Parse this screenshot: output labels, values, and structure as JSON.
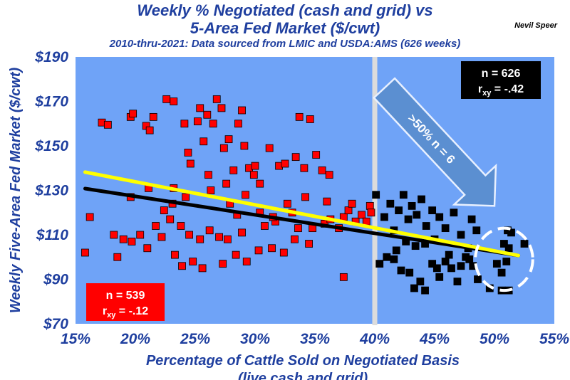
{
  "header": {
    "title_line1": "Weekly % Negotiated (cash and grid) vs",
    "title_line2": "5-Area Fed Market ($/cwt)",
    "subtitle": "2010-thru-2021: Data sourced from LMIC and USDA:AMS (626 weeks)",
    "author": "Nevil Speer"
  },
  "colors": {
    "plot_bg": "#6fa3f7",
    "red_points": "#ff0000",
    "black_points": "#000000",
    "yellow_line": "#ffff00",
    "black_line": "#000000",
    "axis_text": "#1f3f9f",
    "arrow": "#5b8fd1"
  },
  "chart_data": {
    "type": "scatter",
    "title": "Weekly % Negotiated (cash and grid) vs 5-Area Fed Market ($/cwt)",
    "xlabel_line1": "Percentage of Cattle Sold on Negotiated Basis",
    "xlabel_line2": "(live cash and grid)",
    "ylabel": "Weekly Five-Area Fed Market ($/cwt)",
    "xlim": [
      15,
      55
    ],
    "ylim": [
      70,
      190
    ],
    "x_ticks": [
      15,
      20,
      25,
      30,
      35,
      40,
      45,
      50,
      55
    ],
    "x_tick_labels": [
      "15%",
      "20%",
      "25%",
      "30%",
      "35%",
      "40%",
      "45%",
      "50%",
      "55%"
    ],
    "y_ticks": [
      70,
      90,
      110,
      130,
      150,
      170,
      190
    ],
    "y_tick_labels": [
      "$70",
      "$90",
      "$110",
      "$130",
      "$150",
      "$170",
      "$190"
    ],
    "grid": false,
    "divider_x": 40,
    "series": [
      {
        "color": "#ff0000",
        "count_label": "n = 539",
        "r_label": "r",
        "r_sub": "xy",
        "r_value": " = -.12",
        "points": [
          [
            15.8,
            102
          ],
          [
            16.2,
            118
          ],
          [
            17.2,
            160.5
          ],
          [
            17.7,
            159.5
          ],
          [
            18.2,
            110
          ],
          [
            18.5,
            100
          ],
          [
            19,
            108
          ],
          [
            19.6,
            163
          ],
          [
            19.6,
            127
          ],
          [
            19.7,
            107
          ],
          [
            19.8,
            164.5
          ],
          [
            20.4,
            110
          ],
          [
            20.9,
            159
          ],
          [
            21,
            104
          ],
          [
            21.2,
            157
          ],
          [
            21.5,
            163
          ],
          [
            21.7,
            114
          ],
          [
            22.2,
            109
          ],
          [
            22.6,
            171
          ],
          [
            23.2,
            170
          ],
          [
            22.9,
            117
          ],
          [
            23.8,
            114
          ],
          [
            24.1,
            160
          ],
          [
            24.4,
            147
          ],
          [
            24.6,
            142
          ],
          [
            25.2,
            161
          ],
          [
            25.4,
            167
          ],
          [
            25.7,
            152
          ],
          [
            26,
            164
          ],
          [
            26.5,
            160
          ],
          [
            26.8,
            171
          ],
          [
            27.2,
            167
          ],
          [
            27.4,
            149
          ],
          [
            27.8,
            153
          ],
          [
            28.2,
            139
          ],
          [
            28.6,
            160
          ],
          [
            28.9,
            166
          ],
          [
            29.1,
            150
          ],
          [
            29.5,
            140
          ],
          [
            29.9,
            137
          ],
          [
            30.4,
            133
          ],
          [
            31.2,
            149
          ],
          [
            32,
            141
          ],
          [
            32.5,
            142
          ],
          [
            33.4,
            145
          ],
          [
            33.7,
            163
          ],
          [
            34.1,
            140
          ],
          [
            34.6,
            162
          ],
          [
            35.1,
            146
          ],
          [
            35.6,
            139
          ],
          [
            36.2,
            137
          ],
          [
            37.4,
            91
          ],
          [
            23.3,
            101
          ],
          [
            23.9,
            96
          ],
          [
            24.8,
            98
          ],
          [
            25.6,
            95
          ],
          [
            27.3,
            97
          ],
          [
            28.4,
            101
          ],
          [
            29.3,
            98
          ],
          [
            30.3,
            103
          ],
          [
            31.4,
            104
          ],
          [
            32.4,
            102
          ],
          [
            33.3,
            108
          ],
          [
            34.5,
            106
          ],
          [
            35.8,
            115
          ],
          [
            36.3,
            117
          ],
          [
            37,
            113
          ],
          [
            37.4,
            118
          ],
          [
            37.8,
            121
          ],
          [
            38.4,
            116
          ],
          [
            38.9,
            119
          ],
          [
            39.3,
            116
          ],
          [
            39.6,
            123
          ],
          [
            39.7,
            120
          ],
          [
            24.5,
            110
          ],
          [
            25.4,
            108
          ],
          [
            26.2,
            112
          ],
          [
            27,
            109
          ],
          [
            27.7,
            108
          ],
          [
            28.9,
            111
          ],
          [
            30.8,
            114
          ],
          [
            31.7,
            116
          ],
          [
            33.6,
            113
          ],
          [
            34.8,
            113
          ],
          [
            21.1,
            131
          ],
          [
            22.4,
            121
          ],
          [
            23.1,
            124
          ],
          [
            24.2,
            127
          ],
          [
            26.3,
            130
          ],
          [
            27.6,
            133
          ],
          [
            29.2,
            128
          ],
          [
            30.4,
            120
          ],
          [
            32.7,
            124
          ],
          [
            34.2,
            127
          ],
          [
            36,
            125
          ],
          [
            38.1,
            124
          ],
          [
            23.2,
            131
          ],
          [
            26.1,
            137
          ],
          [
            30,
            141
          ],
          [
            31.5,
            118
          ],
          [
            33.1,
            120
          ],
          [
            28.5,
            119
          ],
          [
            27.9,
            124
          ]
        ]
      },
      {
        "color": "#000000",
        "count_label": "n = 626",
        "r_label": "r",
        "r_sub": "xy",
        "r_value": " = -.42",
        "points": [
          [
            40.1,
            128
          ],
          [
            40.8,
            118
          ],
          [
            41.3,
            124
          ],
          [
            41.6,
            112
          ],
          [
            42,
            121
          ],
          [
            42.4,
            128
          ],
          [
            42.8,
            117
          ],
          [
            43.1,
            123
          ],
          [
            43.5,
            119
          ],
          [
            43.9,
            126
          ],
          [
            44.3,
            114
          ],
          [
            44.8,
            121
          ],
          [
            45.4,
            118
          ],
          [
            45.9,
            113
          ],
          [
            46.6,
            120
          ],
          [
            47.2,
            110
          ],
          [
            48.1,
            117
          ],
          [
            48.5,
            112
          ],
          [
            40.4,
            97
          ],
          [
            41,
            100
          ],
          [
            41.6,
            99
          ],
          [
            42.2,
            94
          ],
          [
            42.9,
            93
          ],
          [
            43.3,
            86
          ],
          [
            43.8,
            89
          ],
          [
            44.2,
            85
          ],
          [
            44.8,
            97
          ],
          [
            45.2,
            95
          ],
          [
            45.4,
            91
          ],
          [
            45.9,
            98
          ],
          [
            46.4,
            95
          ],
          [
            46.9,
            89
          ],
          [
            47.2,
            96
          ],
          [
            47.6,
            100
          ],
          [
            47.9,
            99
          ],
          [
            48.2,
            96
          ],
          [
            48.6,
            90
          ],
          [
            49.6,
            86
          ],
          [
            41.8,
            103
          ],
          [
            42.6,
            107
          ],
          [
            43.4,
            105
          ],
          [
            44.2,
            106
          ],
          [
            45,
            108
          ],
          [
            46.2,
            101
          ],
          [
            47.8,
            104
          ],
          [
            50.6,
            93
          ],
          [
            51,
            98
          ],
          [
            50.2,
            97
          ],
          [
            51.1,
            112
          ],
          [
            51.4,
            111
          ],
          [
            50.8,
            106
          ],
          [
            52.5,
            106
          ],
          [
            51.2,
            104
          ],
          [
            50.6,
            85
          ],
          [
            51.2,
            85
          ]
        ]
      }
    ],
    "trendlines": [
      {
        "color": "#000000",
        "x": [
          15.8,
          52
        ],
        "y": [
          130.8,
          100.7
        ]
      },
      {
        "color": "#ffff00",
        "x": [
          15.8,
          52
        ],
        "y": [
          138.2,
          100.7
        ]
      }
    ],
    "annotation_arrow": {
      "text": ">50% n = 6",
      "from": [
        40.8,
        176
      ],
      "to": [
        50,
        123
      ]
    },
    "highlight_ellipse": {
      "cx": 50.8,
      "cy": 99,
      "rx": 2.4,
      "ry": 14
    }
  }
}
